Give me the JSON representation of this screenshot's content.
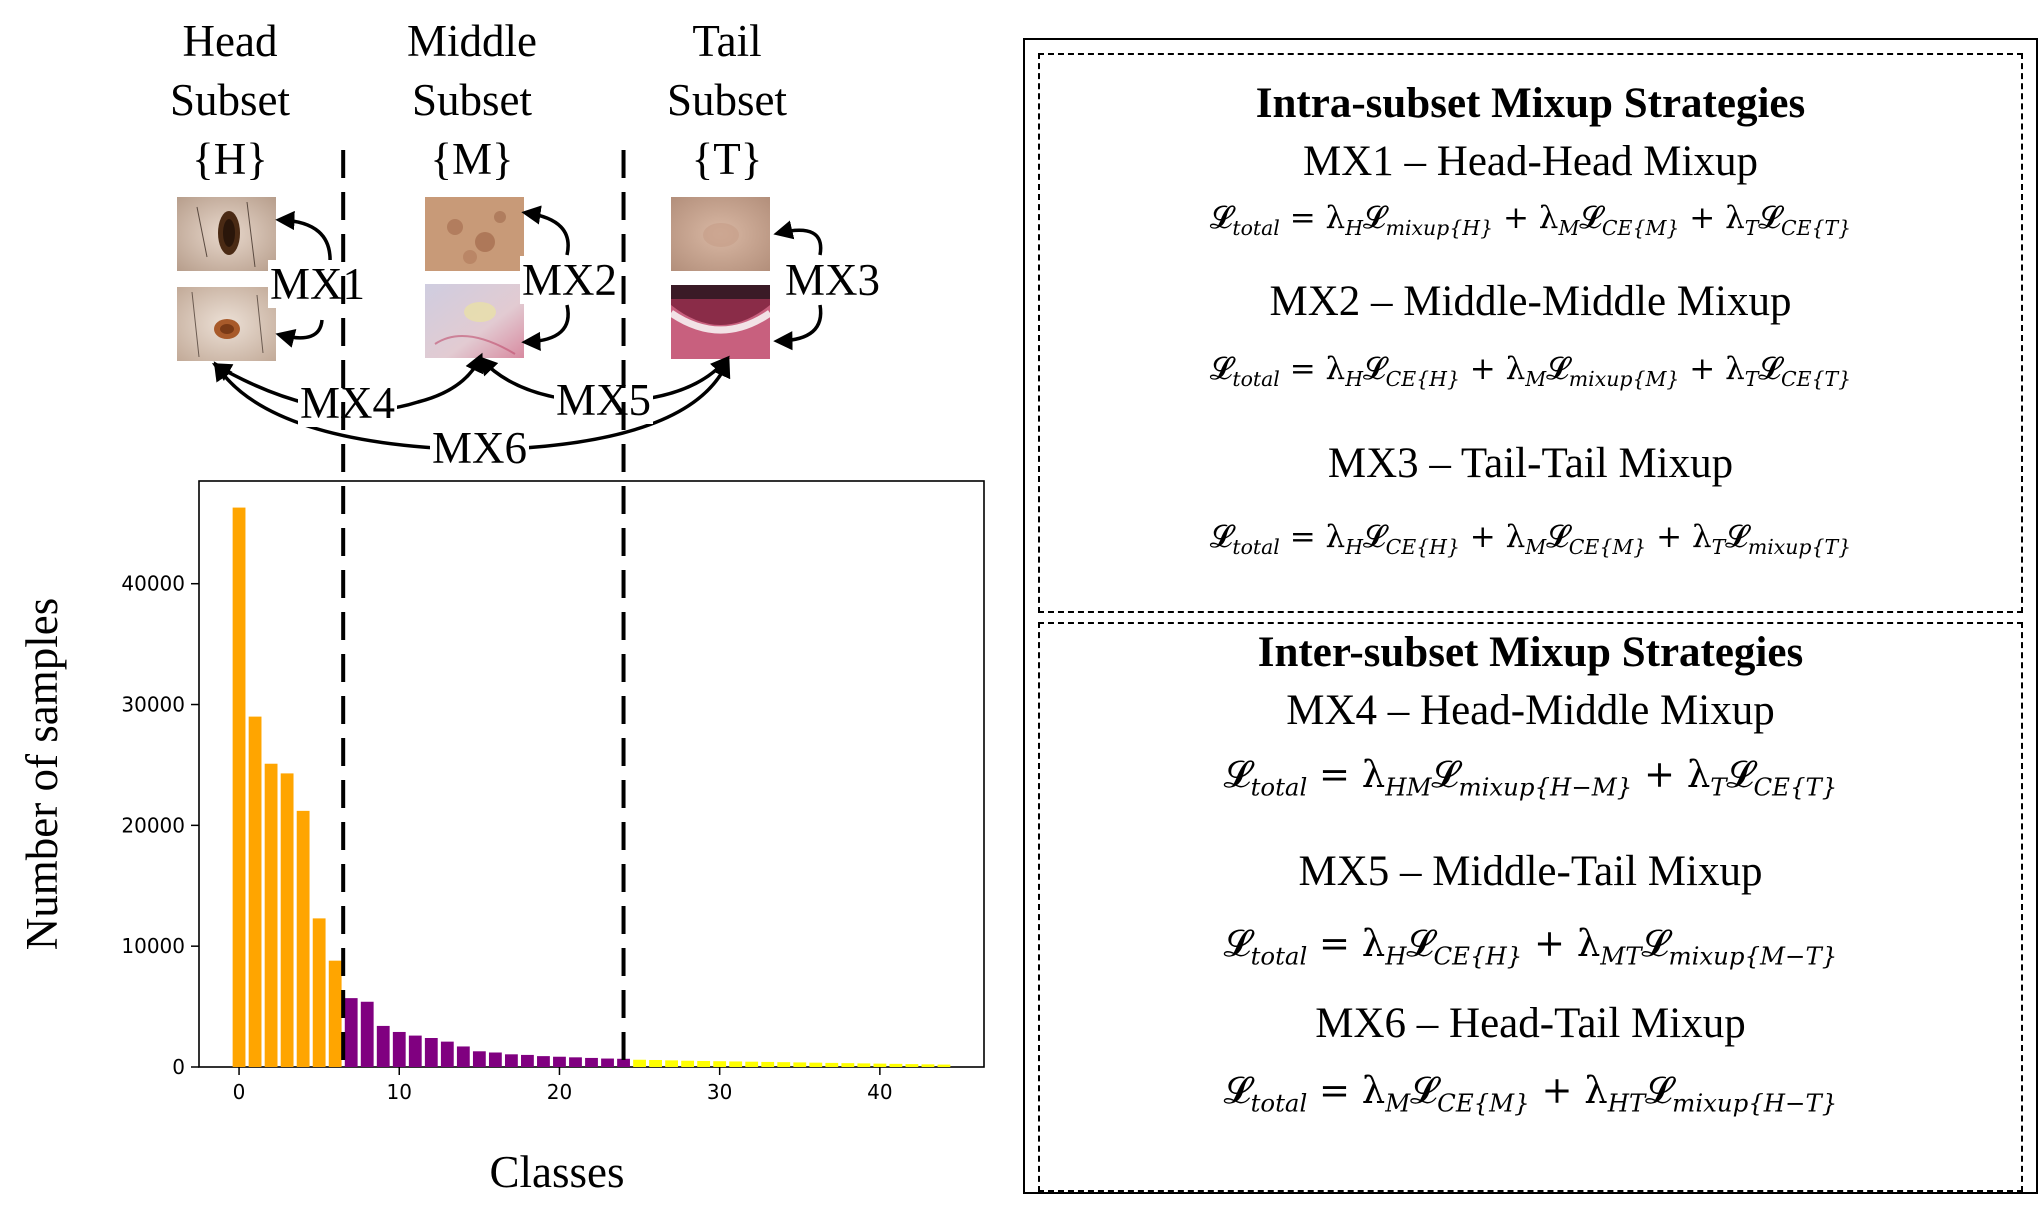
{
  "subsets": [
    {
      "line1": "Head",
      "line2": "Subset",
      "line3": "{H}"
    },
    {
      "line1": "Middle",
      "line2": "Subset",
      "line3": "{M}"
    },
    {
      "line1": "Tail",
      "line2": "Subset",
      "line3": "{T}"
    }
  ],
  "mixup_arrows": [
    "MX1",
    "MX2",
    "MX3",
    "MX4",
    "MX5",
    "MX6"
  ],
  "colors": {
    "head": "#FFA500",
    "middle": "#800080",
    "tail": "#FFFF00"
  },
  "chart_data": {
    "type": "bar",
    "xlabel": "Classes",
    "ylabel": "Number of samples",
    "xlim": [
      -2.5,
      46.5
    ],
    "ylim": [
      0,
      48500
    ],
    "xticks": [
      0,
      10,
      20,
      30,
      40
    ],
    "yticks": [
      0,
      10000,
      20000,
      30000,
      40000
    ],
    "split_lines_x": [
      6.5,
      24
    ],
    "series": [
      {
        "name": "Head",
        "color": "#FFA500",
        "x": [
          0,
          1,
          2,
          3,
          4,
          5,
          6
        ],
        "values": [
          46300,
          29000,
          25100,
          24300,
          21200,
          12300,
          8800
        ]
      },
      {
        "name": "Middle",
        "color": "#800080",
        "x": [
          7,
          8,
          9,
          10,
          11,
          12,
          13,
          14,
          15,
          16,
          17,
          18,
          19,
          20,
          21,
          22,
          23,
          24
        ],
        "values": [
          5700,
          5400,
          3400,
          2900,
          2600,
          2400,
          2100,
          1700,
          1300,
          1200,
          1050,
          1000,
          900,
          850,
          800,
          750,
          700,
          680
        ]
      },
      {
        "name": "Tail",
        "color": "#FFFF00",
        "x": [
          25,
          26,
          27,
          28,
          29,
          30,
          31,
          32,
          33,
          34,
          35,
          36,
          37,
          38,
          39,
          40,
          41,
          42,
          43,
          44
        ],
        "values": [
          600,
          580,
          550,
          520,
          500,
          480,
          460,
          440,
          420,
          400,
          380,
          360,
          340,
          320,
          300,
          280,
          260,
          240,
          220,
          200
        ]
      }
    ]
  },
  "panel": {
    "intra": {
      "heading": "Intra-subset Mixup Strategies",
      "items": [
        {
          "title": "MX1 – Head-Head Mixup",
          "formula": "𝓛_total = λ_H 𝓛_mixup{H} + λ_M 𝓛_CE{M} + λ_T 𝓛_CE{T}"
        },
        {
          "title": "MX2 – Middle-Middle Mixup",
          "formula": "𝓛_total = λ_H 𝓛_CE{H} + λ_M 𝓛_mixup{M} + λ_T 𝓛_CE{T}"
        },
        {
          "title": "MX3 – Tail-Tail Mixup",
          "formula": "𝓛_total = λ_H 𝓛_CE{H} + λ_M 𝓛_CE{M} + λ_T 𝓛_mixup{T}"
        }
      ]
    },
    "inter": {
      "heading": "Inter-subset Mixup Strategies",
      "items": [
        {
          "title": "MX4 – Head-Middle Mixup",
          "formula": "𝓛_total = λ_HM 𝓛_mixup{H−M} + λ_T 𝓛_CE{T}"
        },
        {
          "title": "MX5 – Middle-Tail Mixup",
          "formula": "𝓛_total = λ_H 𝓛_CE{H} + λ_MT 𝓛_mixup{M−T}"
        },
        {
          "title": "MX6 – Head-Tail Mixup",
          "formula": "𝓛_total = λ_M 𝓛_CE{M} + λ_HT 𝓛_mixup{H−T}"
        }
      ]
    }
  }
}
